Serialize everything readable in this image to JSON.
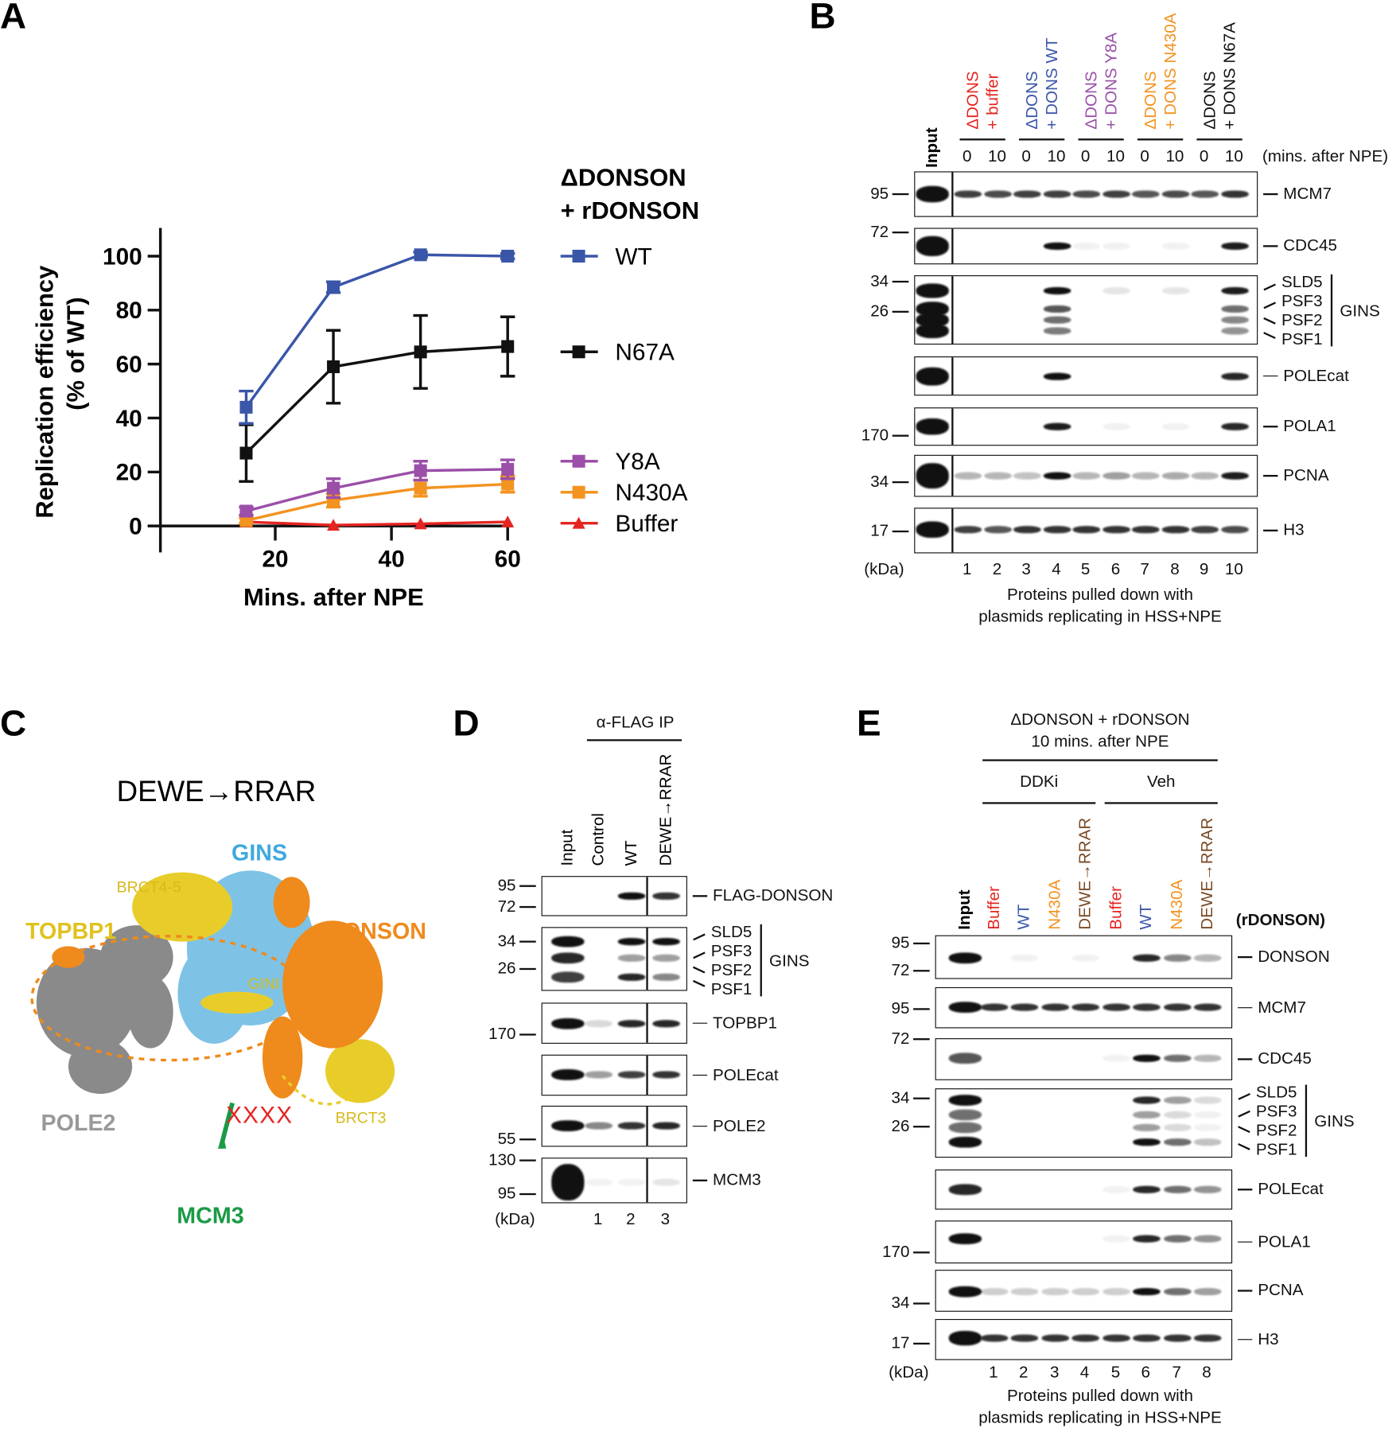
{
  "panel_labels": {
    "a": "A",
    "b": "B",
    "c": "C",
    "d": "D",
    "e": "E"
  },
  "chart_data": {
    "type": "line",
    "xlabel": "Mins. after NPE",
    "ylabel_line1": "Replication efficiency",
    "ylabel_line2": "(% of WT)",
    "x": [
      15,
      30,
      45,
      60
    ],
    "xticks": [
      20,
      40,
      60
    ],
    "yticks": [
      0,
      20,
      40,
      60,
      80,
      100
    ],
    "xlim": [
      0,
      62
    ],
    "ylim": [
      -10,
      110
    ],
    "legend_title_1": "ΔDONSON",
    "legend_title_2": "+ rDONSON",
    "legend_placement": "right",
    "series": [
      {
        "name": "WT",
        "color": "#3a56a8",
        "marker": "square",
        "values": [
          44,
          88.5,
          100.5,
          100
        ],
        "err": [
          6,
          2,
          1,
          1
        ]
      },
      {
        "name": "N67A",
        "color": "#111111",
        "marker": "square",
        "values": [
          27,
          59,
          64.5,
          66.5
        ],
        "err": [
          10.5,
          13.5,
          13.5,
          11
        ]
      },
      {
        "name": "Y8A",
        "color": "#9b4fa8",
        "marker": "square",
        "values": [
          5.5,
          14,
          20.5,
          21
        ],
        "err": [
          1.5,
          3.5,
          3.5,
          3.5
        ]
      },
      {
        "name": "N430A",
        "color": "#f39320",
        "marker": "square",
        "values": [
          2,
          9.5,
          14,
          15.5
        ],
        "err": [
          1,
          2.5,
          3,
          3
        ]
      },
      {
        "name": "Buffer",
        "color": "#e52521",
        "marker": "triangle",
        "values": [
          1.5,
          0.3,
          0.8,
          1.5
        ],
        "err": [
          0.5,
          0.3,
          0.3,
          0.3
        ]
      }
    ]
  },
  "panel_b": {
    "input": "Input",
    "groups": [
      {
        "l1": "ΔDONS",
        "l2": "+ buffer",
        "c1": "#e52521",
        "c2": "#e52521",
        "l2b": ""
      },
      {
        "l1": "ΔDONS",
        "l2": "+ DONS ",
        "l2b": "WT",
        "c1": "#3a56a8",
        "c2": "#3a56a8"
      },
      {
        "l1": "ΔDONS",
        "l2": "+ DONS ",
        "l2b": "Y8A",
        "c1": "#9b4fa8",
        "c2": "#9b4fa8"
      },
      {
        "l1": "ΔDONS",
        "l2": "+ DONS ",
        "l2b": "N430A",
        "c1": "#f39320",
        "c2": "#f39320"
      },
      {
        "l1": "ΔDONS",
        "l2": "+ DONS ",
        "l2b": "N67A",
        "c1": "#111111",
        "c2": "#111111"
      }
    ],
    "times": [
      "0",
      "10",
      "0",
      "10",
      "0",
      "10",
      "0",
      "10",
      "0",
      "10"
    ],
    "time_unit": "(mins. after NPE)",
    "kda": "(kDa)",
    "lanes": [
      "1",
      "2",
      "3",
      "4",
      "5",
      "6",
      "7",
      "8",
      "9",
      "10"
    ],
    "caption_1": "Proteins pulled down with",
    "caption_2": "plasmids replicating in HSS+NPE",
    "gins": "GINS",
    "rows": [
      {
        "name": "MCM7",
        "mw": [
          "95"
        ],
        "bands": [
          [
            1,
            0.8,
            0.75,
            0.8,
            0.8,
            0.75,
            0.8,
            0.7,
            0.75,
            0.7,
            0.85
          ]
        ]
      },
      {
        "name": "CDC45",
        "mw": [
          "72"
        ],
        "bands": [
          [
            1,
            0,
            0,
            0,
            1,
            0.05,
            0.05,
            0,
            0.05,
            0,
            0.95
          ]
        ]
      },
      {
        "names": [
          "SLD5",
          "PSF3",
          "PSF2",
          "PSF1"
        ],
        "mw": [
          "34",
          "26"
        ],
        "bands": [
          [
            1,
            0,
            0,
            0,
            1,
            0,
            0.1,
            0,
            0.1,
            0,
            0.95
          ],
          [
            1,
            0,
            0,
            0,
            0.7,
            0,
            0,
            0,
            0,
            0,
            0.6
          ],
          [
            1,
            0,
            0,
            0,
            0.6,
            0,
            0,
            0,
            0,
            0,
            0.5
          ],
          [
            1,
            0,
            0,
            0,
            0.55,
            0,
            0,
            0,
            0,
            0,
            0.45
          ]
        ]
      },
      {
        "name": "POLEcat",
        "mw": [],
        "bands": [
          [
            1,
            0,
            0,
            0,
            1,
            0,
            0,
            0,
            0,
            0,
            0.9
          ]
        ]
      },
      {
        "name": "POLA1",
        "mw": [
          "170"
        ],
        "bands": [
          [
            1,
            0,
            0,
            0,
            0.95,
            0,
            0.05,
            0,
            0.05,
            0,
            0.9
          ]
        ]
      },
      {
        "name": "PCNA",
        "mw": [
          "34"
        ],
        "bands": [
          [
            1,
            0.3,
            0.3,
            0.25,
            1,
            0.3,
            0.4,
            0.3,
            0.35,
            0.3,
            0.95
          ]
        ]
      },
      {
        "name": "H3",
        "mw": [
          "17"
        ],
        "bands": [
          [
            1,
            0.8,
            0.7,
            0.85,
            0.85,
            0.85,
            0.85,
            0.85,
            0.85,
            0.8,
            0.75
          ]
        ]
      }
    ]
  },
  "panel_c": {
    "title": "DEWE→RRAR",
    "gins": "GINS",
    "brct45": "BRCT4-5",
    "topbp1": "TOPBP1",
    "donson": "DONSON",
    "gini": "GINI",
    "pole2": "POLE2",
    "brct3": "BRCT3",
    "mutation_mark": "XXXX",
    "mcm3": "MCM3",
    "colors": {
      "gins": "#7ec3e6",
      "topbp1": "#e8cd2a",
      "donson": "#ef8a1c",
      "pole2": "#8c8c8c",
      "mcm3": "#1a9a45",
      "mark": "#e52521"
    }
  },
  "panel_d": {
    "ip": "α-FLAG IP",
    "lane_headers": [
      "Input",
      "Control",
      "WT",
      "DEWE→RRAR"
    ],
    "lanes": [
      "1",
      "2",
      "3"
    ],
    "kda": "(kDa)",
    "gins": "GINS",
    "rows": [
      {
        "name": "FLAG-DONSON",
        "mw": [
          "95",
          "72"
        ],
        "bands": [
          [
            0,
            0,
            1,
            0.85
          ]
        ]
      },
      {
        "names": [
          "SLD5",
          "PSF3",
          "PSF2",
          "PSF1"
        ],
        "mw": [
          "34",
          "26"
        ],
        "bands": [
          [
            1,
            0,
            1,
            1
          ],
          [
            0.9,
            0,
            0.4,
            0.4
          ],
          [
            0,
            0,
            0,
            0
          ],
          [
            0.8,
            0,
            0.9,
            0.5
          ]
        ]
      },
      {
        "name": "TOPBP1",
        "mw": [
          "170"
        ],
        "bands": [
          [
            1,
            0.15,
            0.9,
            0.9
          ]
        ]
      },
      {
        "name": "POLEcat",
        "mw": [],
        "bands": [
          [
            1,
            0.4,
            0.8,
            0.85
          ]
        ]
      },
      {
        "name": "POLE2",
        "mw": [
          "55"
        ],
        "bands": [
          [
            1,
            0.5,
            0.85,
            0.9
          ]
        ]
      },
      {
        "name": "MCM3",
        "mw": [
          "130",
          "95"
        ],
        "bands": [
          [
            1,
            0.05,
            0.05,
            0.1
          ]
        ]
      }
    ]
  },
  "panel_e": {
    "title_1": "ΔDONSON + rDONSON",
    "title_2": "10 mins. after NPE",
    "ddki": "DDKi",
    "veh": "Veh",
    "input": "Input",
    "lane_headers": [
      {
        "t": "Buffer",
        "c": "#e52521"
      },
      {
        "t": "WT",
        "c": "#3a56a8"
      },
      {
        "t": "N430A",
        "c": "#f39320"
      },
      {
        "t": "DEWE→RRAR",
        "c": "#7a4a25"
      },
      {
        "t": "Buffer",
        "c": "#e52521"
      },
      {
        "t": "WT",
        "c": "#3a56a8"
      },
      {
        "t": "N430A",
        "c": "#f39320"
      },
      {
        "t": "DEWE→RRAR",
        "c": "#7a4a25"
      }
    ],
    "rdonson": "(rDONSON)",
    "lanes": [
      "1",
      "2",
      "3",
      "4",
      "5",
      "6",
      "7",
      "8"
    ],
    "kda": "(kDa)",
    "caption_1": "Proteins pulled down with",
    "caption_2": "plasmids replicating in HSS+NPE",
    "gins": "GINS",
    "rows": [
      {
        "name": "DONSON",
        "mw": [
          "95",
          "72"
        ],
        "bands": [
          [
            1,
            0,
            0.05,
            0,
            0.05,
            0,
            0.9,
            0.5,
            0.3
          ]
        ]
      },
      {
        "name": "MCM7",
        "mw": [
          "95"
        ],
        "bands": [
          [
            1,
            0.85,
            0.85,
            0.85,
            0.85,
            0.85,
            0.85,
            0.85,
            0.85
          ]
        ]
      },
      {
        "name": "CDC45",
        "mw": [
          "72"
        ],
        "bands": [
          [
            0.7,
            0,
            0,
            0,
            0,
            0.05,
            1,
            0.6,
            0.3
          ]
        ]
      },
      {
        "names": [
          "SLD5",
          "PSF3",
          "PSF2",
          "PSF1"
        ],
        "mw": [
          "34",
          "26"
        ],
        "bands": [
          [
            1,
            0,
            0,
            0,
            0,
            0,
            0.9,
            0.4,
            0.15
          ],
          [
            0.6,
            0,
            0,
            0,
            0,
            0,
            0.4,
            0.15,
            0.05
          ],
          [
            0.6,
            0,
            0,
            0,
            0,
            0,
            0.4,
            0.15,
            0.05
          ],
          [
            1,
            0,
            0,
            0,
            0,
            0,
            1,
            0.6,
            0.25
          ]
        ]
      },
      {
        "name": "POLEcat",
        "mw": [],
        "bands": [
          [
            0.9,
            0,
            0,
            0,
            0,
            0.05,
            0.9,
            0.6,
            0.45
          ]
        ]
      },
      {
        "name": "POLA1",
        "mw": [
          "170"
        ],
        "bands": [
          [
            1,
            0,
            0,
            0,
            0,
            0.05,
            0.9,
            0.6,
            0.45
          ]
        ]
      },
      {
        "name": "PCNA",
        "mw": [
          "34"
        ],
        "bands": [
          [
            1,
            0.2,
            0.2,
            0.2,
            0.2,
            0.2,
            1,
            0.6,
            0.4
          ]
        ]
      },
      {
        "name": "H3",
        "mw": [
          "17"
        ],
        "bands": [
          [
            1,
            0.85,
            0.85,
            0.85,
            0.85,
            0.85,
            0.85,
            0.85,
            0.85
          ]
        ]
      }
    ]
  }
}
